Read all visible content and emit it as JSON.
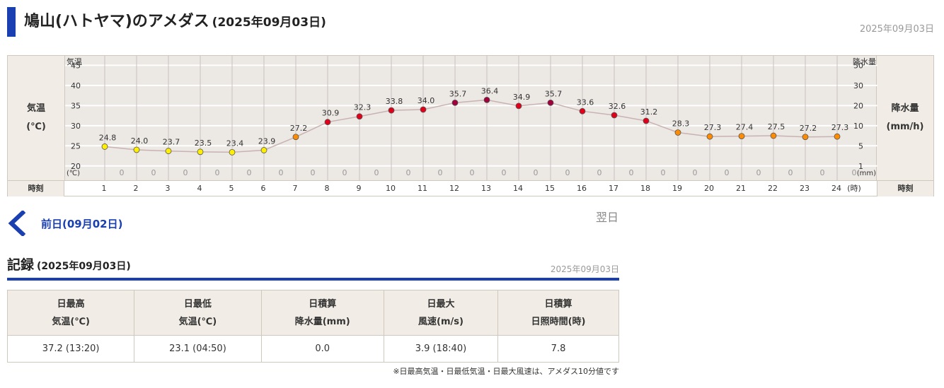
{
  "page": {
    "title": "鳩山(ハトヤマ)のアメダス",
    "title_date": "(2025年09月03日)",
    "date_right": "2025年09月03日"
  },
  "chart_data": {
    "type": "line",
    "title": "",
    "x": [
      1,
      2,
      3,
      4,
      5,
      6,
      7,
      8,
      9,
      10,
      11,
      12,
      13,
      14,
      15,
      16,
      17,
      18,
      19,
      20,
      21,
      22,
      23,
      24
    ],
    "x_unit": "(時)",
    "series": [
      {
        "name": "気温",
        "unit": "℃",
        "values": [
          24.8,
          24.0,
          23.7,
          23.5,
          23.4,
          23.9,
          27.2,
          30.9,
          32.3,
          33.8,
          34.0,
          35.7,
          36.4,
          34.9,
          35.7,
          33.6,
          32.6,
          31.2,
          28.3,
          27.3,
          27.4,
          27.5,
          27.2,
          27.3
        ],
        "labels": [
          "24.8",
          "24.0",
          "23.7",
          "23.5",
          "23.4",
          "23.9",
          "27.2",
          "30.9",
          "32.3",
          "33.8",
          "34.0",
          "35.7",
          "36.4",
          "34.9",
          "35.7",
          "33.6",
          "32.6",
          "31.2",
          "28.3",
          "27.3",
          "27.4",
          "27.5",
          "27.2",
          "27.3"
        ]
      },
      {
        "name": "降水量",
        "unit": "mm/h",
        "values": [
          0,
          0,
          0,
          0,
          0,
          0,
          0,
          0,
          0,
          0,
          0,
          0,
          0,
          0,
          0,
          0,
          0,
          0,
          0,
          0,
          0,
          0,
          0,
          0
        ],
        "labels": [
          "0",
          "0",
          "0",
          "0",
          "0",
          "0",
          "0",
          "0",
          "0",
          "0",
          "0",
          "0",
          "0",
          "0",
          "0",
          "0",
          "0",
          "0",
          "0",
          "0",
          "0",
          "0",
          "0",
          "0"
        ]
      }
    ],
    "y_left": {
      "label": "気温",
      "unit_label": "(℃)",
      "ticks": [
        "45",
        "40",
        "35",
        "30",
        "25",
        "20"
      ],
      "tick_values": [
        45,
        40,
        35,
        30,
        25,
        20
      ],
      "ylim": [
        17.5,
        47
      ]
    },
    "y_right": {
      "label": "降水量",
      "unit_label": "(mm)",
      "ticks": [
        "50",
        "30",
        "20",
        "10",
        "5",
        "1"
      ]
    },
    "grid": true,
    "colors": {
      "line": "#c9b2b2",
      "point_yellow": "#ffef00",
      "point_orange": "#ff8c00",
      "point_red": "#e0001a",
      "point_darkred": "#a0003c"
    }
  },
  "chart_labels": {
    "left_title": "気温",
    "left_unit": "(℃)",
    "right_title": "降水量",
    "right_unit": "(mm/h)",
    "hour_row_label_left": "時刻",
    "hour_row_label_right": "時刻",
    "hour_suffix": "(時)"
  },
  "nav": {
    "prev_label": "前日(09月02日)",
    "next_label": "翌日"
  },
  "record": {
    "title": "記録",
    "title_date": "(2025年09月03日)",
    "date_right": "2025年09月03日",
    "headers": [
      [
        "日最高",
        "気温(℃)"
      ],
      [
        "日最低",
        "気温(℃)"
      ],
      [
        "日積算",
        "降水量(mm)"
      ],
      [
        "日最大",
        "風速(m/s)"
      ],
      [
        "日積算",
        "日照時間(時)"
      ]
    ],
    "values": [
      "37.2 (13:20)",
      "23.1 (04:50)",
      "0.0",
      "3.9 (18:40)",
      "7.8"
    ],
    "note": "※日最高気温・日最低気温・日最大風速は、アメダス10分値です"
  }
}
